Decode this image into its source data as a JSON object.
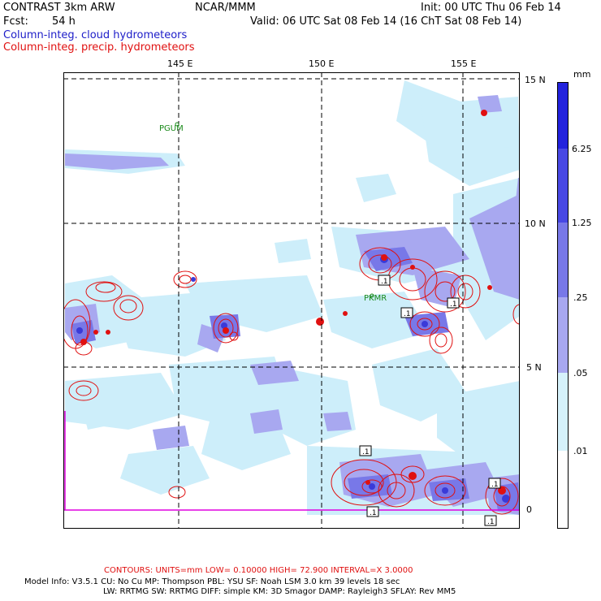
{
  "header": {
    "title": "CONTRAST  3km ARW",
    "org": "NCAR/MMM",
    "init": "Init: 00 UTC Thu 06 Feb 14",
    "fcst_label": "Fcst:",
    "fcst_value": "54 h",
    "valid": "Valid: 06 UTC Sat 08 Feb 14 (16 ChT Sat 08 Feb 14)",
    "legend_cloud": "Column-integ. cloud hydrometeors",
    "legend_precip": "Column-integ. precip. hydrometeors"
  },
  "map": {
    "lon_labels": [
      "145 E",
      "150 E",
      "155 E"
    ],
    "lat_labels": [
      "15 N",
      "10 N",
      "5 N",
      "0"
    ],
    "places": [
      {
        "name": "PGUM"
      },
      {
        "name": "PKMR"
      }
    ],
    "contour_labels": [
      ".1",
      ".1",
      ".1",
      ".1",
      ".1",
      ".1",
      ".1"
    ],
    "colors": {
      "fill_light": "#cdeefa",
      "fill_mid": "#a8a8f0",
      "fill_strong": "#7878e8",
      "fill_dark": "#3a3ad8",
      "precip_contour": "#e01010",
      "grid": "#000000",
      "boundary": "#e000e0"
    }
  },
  "colorbar": {
    "unit": "mm",
    "labels": [
      "6.25",
      "1.25",
      ".25",
      ".05",
      ".01"
    ],
    "colors": [
      "#2222dd",
      "#4848e4",
      "#7878e8",
      "#a8a8f0",
      "#d6f2fb",
      "#ffffff"
    ]
  },
  "footer": {
    "contours": "CONTOURS:  UNITS=mm  LOW= 0.10000      HIGH=  72.900      INTERVAL=X  3.0000",
    "model_line1": "Model Info: V3.5.1     CU: No Cu     MP: Thompson     PBL: YSU        SF: Noah LSM      3.0 km   39 levels    18 sec",
    "model_line2": "LW: RRTMG     SW: RRTMG   DIFF: simple KM: 3D Smagor DAMP: Rayleigh3   SFLAY: Rev MM5"
  }
}
